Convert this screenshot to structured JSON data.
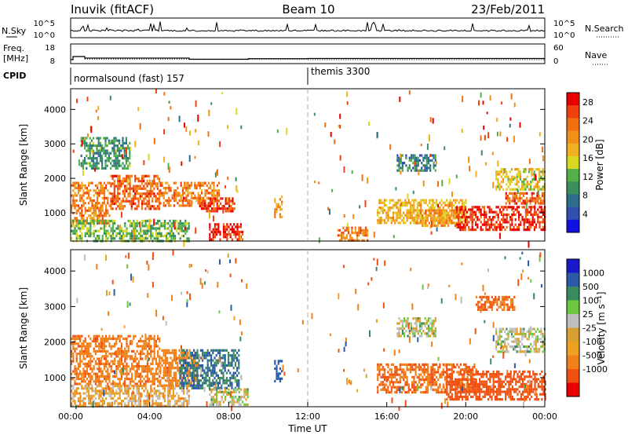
{
  "header": {
    "station": "Inuvik (fitACF)",
    "beam": "Beam 10",
    "date": "23/Feb/2011"
  },
  "top_panels": {
    "nsky_label": "N.Sky",
    "nsky_ticks": [
      "10^5",
      "10^0"
    ],
    "nsearch_label": "N.Search",
    "nsearch_ticks": [
      "10^5",
      "10^0"
    ],
    "freq_label": "Freq.",
    "freq_unit": "[MHz]",
    "freq_ticks": [
      "18",
      "8"
    ],
    "nave_label": "Nave",
    "nave_ticks": [
      "60",
      "0"
    ],
    "cpid_label": "CPID",
    "cpid_segments": [
      {
        "name": "normalsound (fast) 157",
        "start_hour": 0,
        "end_hour": 12
      },
      {
        "name": "themis 3300",
        "start_hour": 12,
        "end_hour": 24
      }
    ]
  },
  "colors": {
    "power": [
      "#1010e0",
      "#3050b0",
      "#2e6e8a",
      "#3b8f5c",
      "#52b048",
      "#d8d820",
      "#f0b020",
      "#f09018",
      "#f07010",
      "#f04010",
      "#e80000"
    ],
    "velocity": [
      "#1a1acc",
      "#2a5aa8",
      "#3a8a60",
      "#6cc840",
      "#bebebe",
      "#d8a030",
      "#f0a020",
      "#f08018",
      "#f05010",
      "#e80000"
    ]
  },
  "chart_data": [
    {
      "type": "heatmap",
      "title": "Power",
      "ylabel": "Slant Range [km]",
      "xlabel": "",
      "ylim": [
        180,
        4600
      ],
      "xlim": [
        0,
        24
      ],
      "yticks": [
        "1000",
        "2000",
        "3000",
        "4000"
      ],
      "colorbar_label": "Power [dB]",
      "colorbar_ticks": [
        "4",
        "8",
        "12",
        "16",
        "20",
        "24",
        "28"
      ],
      "colorbar_range": [
        0,
        30
      ],
      "regions": [
        {
          "t0": 0.0,
          "t1": 2.0,
          "r0": 700,
          "r1": 1900,
          "value": 22
        },
        {
          "t0": 2.0,
          "t1": 4.5,
          "r0": 1100,
          "r1": 2100,
          "value": 24
        },
        {
          "t0": 4.5,
          "t1": 7.5,
          "r0": 1200,
          "r1": 1900,
          "value": 22
        },
        {
          "t0": 6.5,
          "t1": 8.3,
          "r0": 1050,
          "r1": 1450,
          "value": 26
        },
        {
          "t0": 7.0,
          "t1": 8.7,
          "r0": 250,
          "r1": 700,
          "value": 27
        },
        {
          "t0": 10.3,
          "t1": 10.7,
          "r0": 900,
          "r1": 1500,
          "value": 20
        },
        {
          "t0": 0.0,
          "t1": 6.0,
          "r0": 200,
          "r1": 800,
          "value": 12
        },
        {
          "t0": 13.5,
          "t1": 15.0,
          "r0": 200,
          "r1": 600,
          "value": 22
        },
        {
          "t0": 15.5,
          "t1": 20.0,
          "r0": 700,
          "r1": 1400,
          "value": 18
        },
        {
          "t0": 17.5,
          "t1": 20.0,
          "r0": 600,
          "r1": 1100,
          "value": 20
        },
        {
          "t0": 19.5,
          "t1": 24.0,
          "r0": 500,
          "r1": 1200,
          "value": 27
        },
        {
          "t0": 22.0,
          "t1": 24.0,
          "r0": 1300,
          "r1": 1600,
          "value": 24
        },
        {
          "t0": 21.5,
          "t1": 24.0,
          "r0": 1700,
          "r1": 2300,
          "value": 16
        },
        {
          "t0": 16.5,
          "t1": 18.5,
          "r0": 2200,
          "r1": 2700,
          "value": 8
        },
        {
          "t0": 0.5,
          "t1": 3.0,
          "r0": 2300,
          "r1": 3200,
          "value": 10
        }
      ]
    },
    {
      "type": "heatmap",
      "title": "Velocity",
      "ylabel": "Slant Range [km]",
      "xlabel": "Time UT",
      "ylim": [
        180,
        4600
      ],
      "xlim": [
        0,
        24
      ],
      "yticks": [
        "1000",
        "2000",
        "3000",
        "4000"
      ],
      "xticks": [
        "00:00",
        "04:00",
        "08:00",
        "12:00",
        "16:00",
        "20:00",
        "00:00"
      ],
      "colorbar_label": "Velocity [m s⁻¹]",
      "colorbar_ticks": [
        "1000",
        "500",
        "100",
        "25",
        "-25",
        "-100",
        "-500",
        "-1000"
      ],
      "regions": [
        {
          "t0": 0.0,
          "t1": 4.5,
          "r0": 800,
          "r1": 2200,
          "value": -250
        },
        {
          "t0": 4.5,
          "t1": 6.5,
          "r0": 800,
          "r1": 1800,
          "value": -200
        },
        {
          "t0": 5.5,
          "t1": 8.5,
          "r0": 700,
          "r1": 1800,
          "value": 300
        },
        {
          "t0": 7.0,
          "t1": 9.0,
          "r0": 250,
          "r1": 700,
          "value": 0
        },
        {
          "t0": 10.3,
          "t1": 10.7,
          "r0": 900,
          "r1": 1500,
          "value": 400
        },
        {
          "t0": 0.0,
          "t1": 6.0,
          "r0": 200,
          "r1": 800,
          "value": -60
        },
        {
          "t0": 15.5,
          "t1": 20.5,
          "r0": 600,
          "r1": 1400,
          "value": -300
        },
        {
          "t0": 19.0,
          "t1": 24.0,
          "r0": 400,
          "r1": 1200,
          "value": -400
        },
        {
          "t0": 16.5,
          "t1": 18.5,
          "r0": 2200,
          "r1": 2700,
          "value": 0
        },
        {
          "t0": 21.5,
          "t1": 24.0,
          "r0": 1700,
          "r1": 2400,
          "value": 0
        },
        {
          "t0": 20.5,
          "t1": 22.5,
          "r0": 2900,
          "r1": 3300,
          "value": -300
        }
      ]
    }
  ]
}
